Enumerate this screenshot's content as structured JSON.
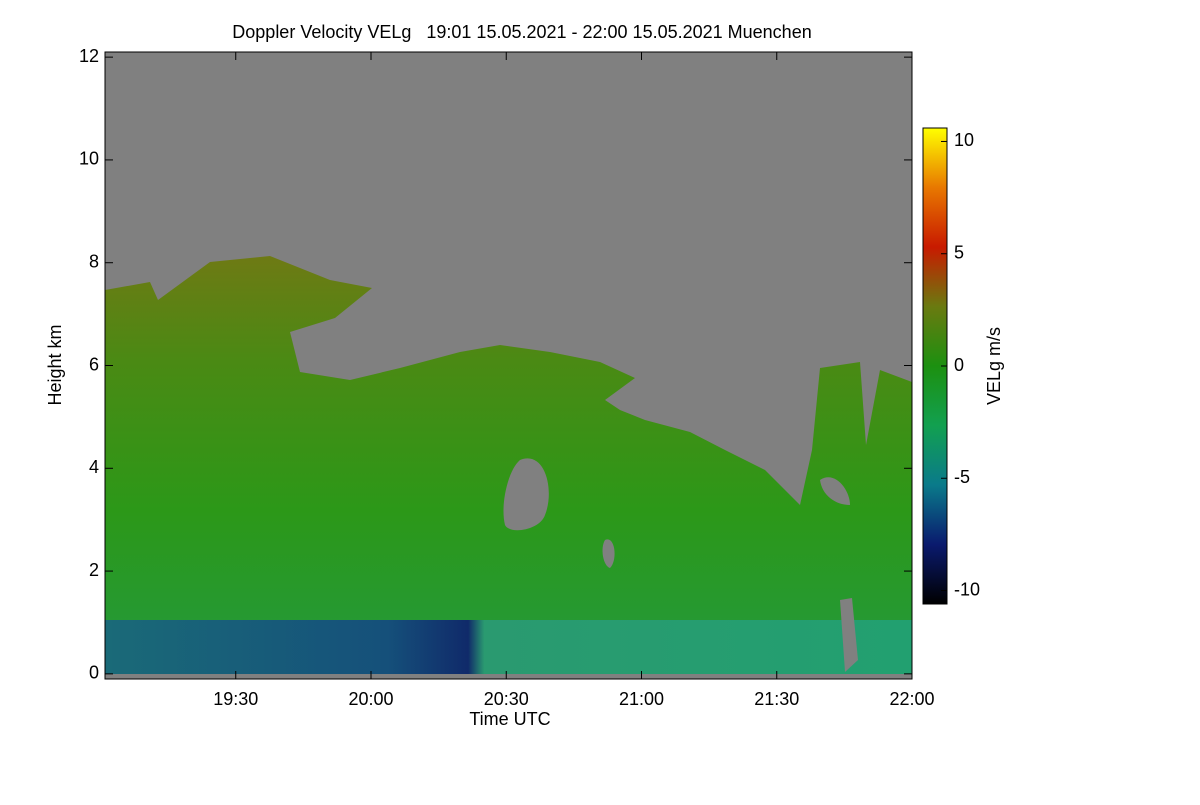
{
  "chart_data": {
    "type": "heatmap",
    "title": "Doppler Velocity VELg   19:01 15.05.2021 - 22:00 15.05.2021 Muenchen",
    "xlabel": "Time UTC",
    "ylabel": "Height km",
    "xlim": [
      1141,
      1320
    ],
    "xticks": [
      {
        "value": 1170,
        "label": "19:30"
      },
      {
        "value": 1200,
        "label": "20:00"
      },
      {
        "value": 1230,
        "label": "20:30"
      },
      {
        "value": 1260,
        "label": "21:00"
      },
      {
        "value": 1290,
        "label": "21:30"
      },
      {
        "value": 1320,
        "label": "22:00"
      }
    ],
    "ylim": [
      -0.1,
      12.1
    ],
    "yticks": [
      0,
      2,
      4,
      6,
      8,
      10,
      12
    ],
    "colorbar_label": "VELg m/s",
    "clim": [
      -10.6,
      10.6
    ],
    "cticks": [
      -10,
      -5,
      0,
      5,
      10
    ],
    "colorscale": [
      "#000000",
      "#0a1a6e",
      "#0a7a8a",
      "#12a050",
      "#1c9010",
      "#6a7a10",
      "#c81a00",
      "#e87800",
      "#ffff00"
    ]
  }
}
